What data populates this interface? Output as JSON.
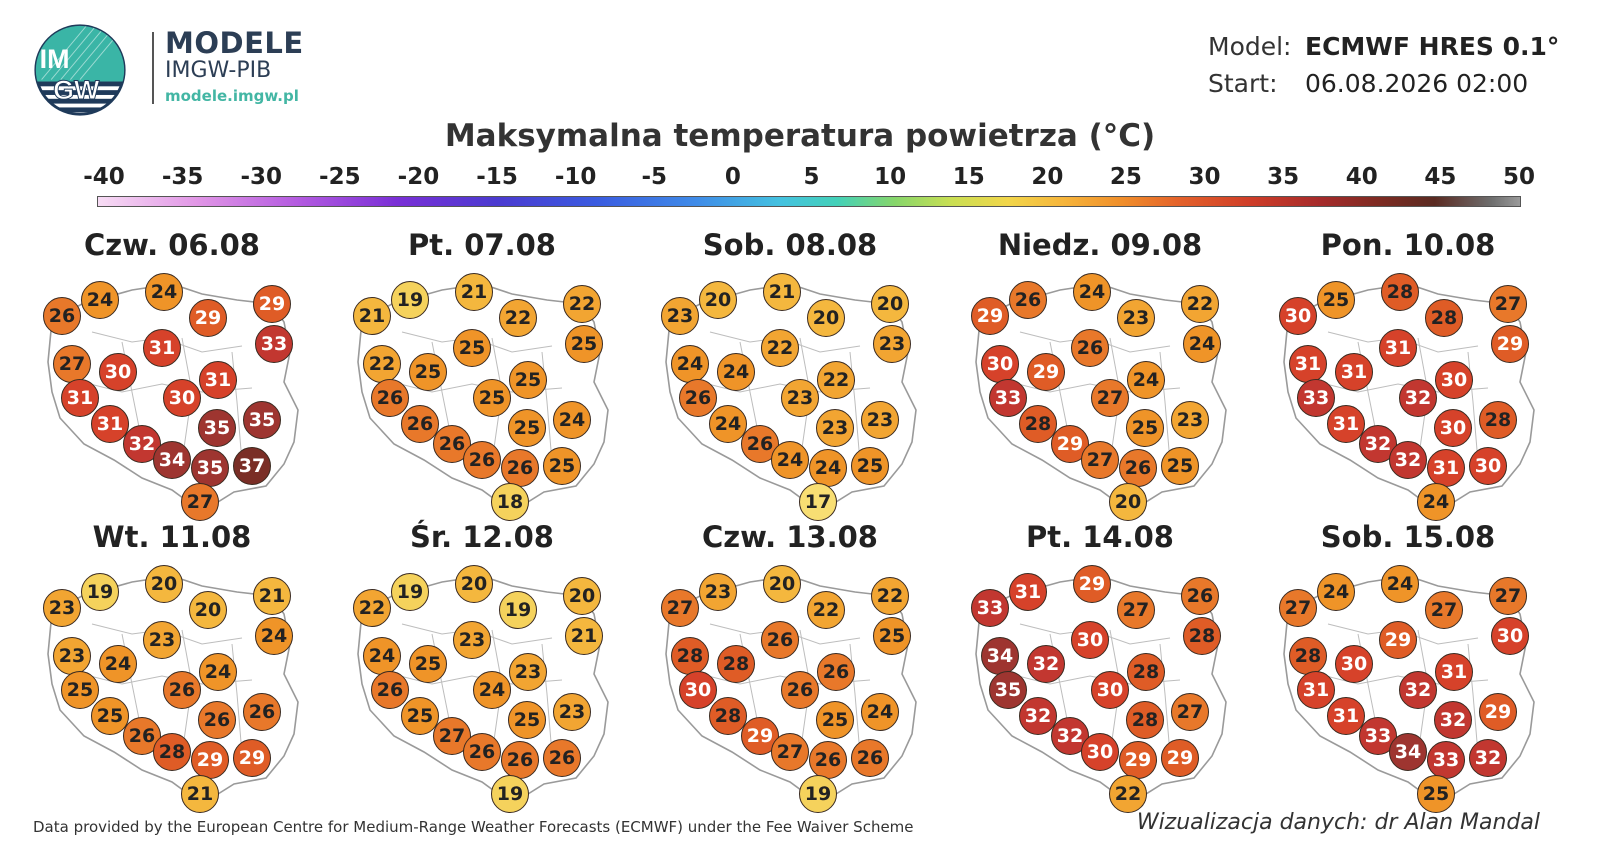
{
  "brand": {
    "logo_text_top": "IM",
    "logo_text_bottom": "GW",
    "title": "MODELE",
    "subtitle": "IMGW-PIB",
    "url": "modele.imgw.pl"
  },
  "model": {
    "model_label": "Model:",
    "model_value": "ECMWF HRES 0.1°",
    "start_label": "Start:",
    "start_value": "06.08.2026 02:00"
  },
  "title": "Maksymalna temperatura powietrza (°C)",
  "scale": {
    "labels": [
      "-40",
      "-35",
      "-30",
      "-25",
      "-20",
      "-15",
      "-10",
      "-5",
      "0",
      "5",
      "10",
      "15",
      "20",
      "25",
      "30",
      "35",
      "40",
      "45",
      "50"
    ],
    "min": -40,
    "max": 50
  },
  "panels": [
    {
      "title": "Czw. 06.08",
      "values": [
        26,
        24,
        24,
        29,
        29,
        33,
        31,
        27,
        30,
        31,
        31,
        30,
        31,
        35,
        35,
        32,
        34,
        35,
        37,
        27
      ]
    },
    {
      "title": "Pt. 07.08",
      "values": [
        21,
        19,
        21,
        22,
        22,
        25,
        25,
        22,
        25,
        25,
        26,
        25,
        26,
        25,
        24,
        26,
        26,
        26,
        25,
        18
      ]
    },
    {
      "title": "Sob. 08.08",
      "values": [
        23,
        20,
        21,
        20,
        20,
        23,
        22,
        24,
        24,
        22,
        26,
        23,
        24,
        23,
        23,
        26,
        24,
        24,
        25,
        17
      ]
    },
    {
      "title": "Niedz. 09.08",
      "values": [
        29,
        26,
        24,
        23,
        22,
        24,
        26,
        30,
        29,
        24,
        33,
        27,
        28,
        25,
        23,
        29,
        27,
        26,
        25,
        20
      ]
    },
    {
      "title": "Pon. 10.08",
      "values": [
        30,
        25,
        28,
        28,
        27,
        29,
        31,
        31,
        31,
        30,
        33,
        32,
        31,
        30,
        28,
        32,
        32,
        31,
        30,
        24
      ]
    },
    {
      "title": "Wt. 11.08",
      "values": [
        23,
        19,
        20,
        20,
        21,
        24,
        23,
        23,
        24,
        24,
        25,
        26,
        25,
        26,
        26,
        26,
        28,
        29,
        29,
        21
      ]
    },
    {
      "title": "Śr. 12.08",
      "values": [
        22,
        19,
        20,
        19,
        20,
        21,
        23,
        24,
        25,
        23,
        26,
        24,
        25,
        25,
        23,
        27,
        26,
        26,
        26,
        19
      ]
    },
    {
      "title": "Czw. 13.08",
      "values": [
        27,
        23,
        20,
        22,
        22,
        25,
        26,
        28,
        28,
        26,
        30,
        26,
        28,
        25,
        24,
        29,
        27,
        26,
        26,
        19
      ]
    },
    {
      "title": "Pt. 14.08",
      "values": [
        33,
        31,
        29,
        27,
        26,
        28,
        30,
        34,
        32,
        28,
        35,
        30,
        32,
        28,
        27,
        32,
        30,
        29,
        29,
        22
      ]
    },
    {
      "title": "Sob. 15.08",
      "values": [
        27,
        24,
        24,
        27,
        27,
        30,
        29,
        28,
        30,
        31,
        31,
        32,
        31,
        32,
        29,
        33,
        34,
        33,
        32,
        25
      ]
    }
  ],
  "footer": {
    "left": "Data provided by the European Centre for Medium-Range Weather Forecasts (ECMWF) under the Fee Waiver Scheme",
    "right": "Wizualizacja danych: dr Alan Mandal"
  },
  "colors": {
    "logo_teal": "#3ab5a6",
    "logo_navy": "#1f3a5a",
    "brand_url": "#43b6a4"
  }
}
